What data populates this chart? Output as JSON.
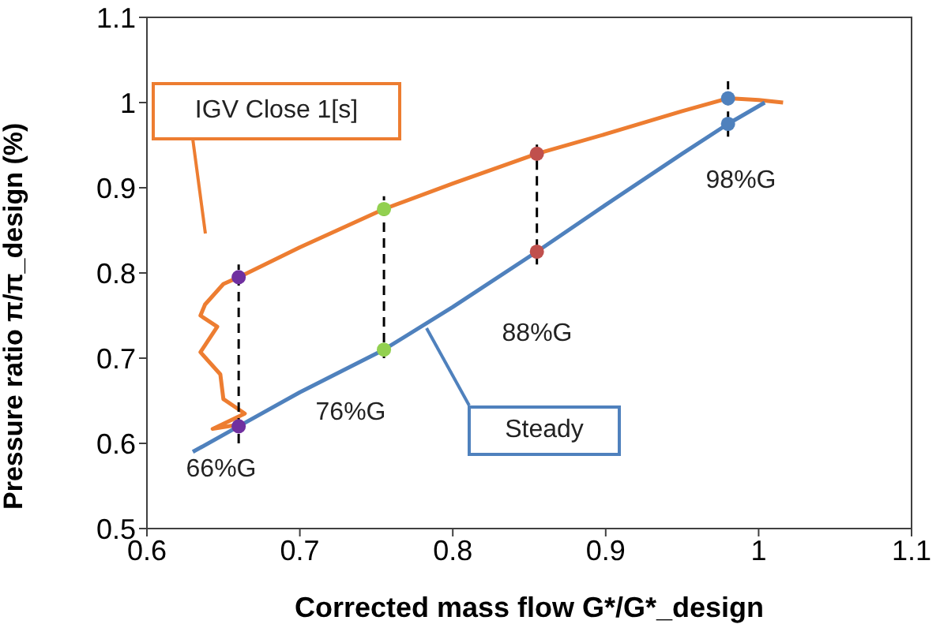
{
  "chart_data": {
    "type": "line",
    "xlabel": "Corrected mass flow G*/G*_design",
    "ylabel": "Pressure ratio π/π_design    (%)",
    "xlim": [
      0.6,
      1.1
    ],
    "xticks": [
      0.6,
      0.7,
      0.8,
      0.9,
      {
        "value": 1,
        "label": "1"
      },
      1.1
    ],
    "ylim": [
      0.5,
      1.1
    ],
    "yticks": [
      0.5,
      0.6,
      0.7,
      0.8,
      0.9,
      {
        "value": 1,
        "label": "1"
      },
      1.1
    ],
    "grid": false,
    "legend": false,
    "series": [
      {
        "name": "IGV Close 1[s]",
        "color": "#ed7d31",
        "marker": "none",
        "x": [
          1.016,
          1.0,
          0.98,
          0.95,
          0.9,
          0.855,
          0.8,
          0.755,
          0.7,
          0.66,
          0.65,
          0.638,
          0.635,
          0.646,
          0.635,
          0.648,
          0.65,
          0.664,
          0.643,
          0.66
        ],
        "values": [
          1.0,
          1.003,
          1.005,
          0.99,
          0.963,
          0.94,
          0.905,
          0.875,
          0.83,
          0.795,
          0.787,
          0.763,
          0.75,
          0.737,
          0.707,
          0.681,
          0.652,
          0.635,
          0.617,
          0.622
        ]
      },
      {
        "name": "Steady",
        "color": "#4f81bd",
        "marker": "none",
        "x": [
          0.63,
          0.66,
          0.7,
          0.755,
          0.8,
          0.855,
          0.9,
          0.95,
          0.98,
          1.004
        ],
        "values": [
          0.59,
          0.62,
          0.66,
          0.71,
          0.76,
          0.825,
          0.88,
          0.94,
          0.975,
          1.0
        ]
      },
      {
        "type": "line",
        "color": "#000000",
        "marker": "none",
        "line_style": "dashed",
        "x": [
          0.66,
          0.66
        ],
        "values": [
          0.6,
          0.81
        ]
      },
      {
        "type": "line",
        "color": "#000000",
        "marker": "none",
        "line_style": "dashed",
        "x": [
          0.755,
          0.755
        ],
        "values": [
          0.7,
          0.89
        ]
      },
      {
        "type": "line",
        "color": "#000000",
        "marker": "none",
        "line_style": "dashed",
        "x": [
          0.855,
          0.855
        ],
        "values": [
          0.81,
          0.955
        ]
      },
      {
        "type": "line",
        "color": "#000000",
        "marker": "none",
        "line_style": "dashed",
        "x": [
          0.98,
          0.98
        ],
        "values": [
          0.96,
          1.025
        ]
      },
      {
        "type": "scatter",
        "marker": "circle",
        "x": [
          0.66,
          0.66,
          0.755,
          0.755,
          0.855,
          0.855,
          0.98,
          0.98
        ],
        "values": [
          0.795,
          0.62,
          0.875,
          0.71,
          0.94,
          0.825,
          1.005,
          0.975
        ],
        "colors": [
          "#7030a0",
          "#7030a0",
          "#92d050",
          "#92d050",
          "#c0504d",
          "#c0504d",
          "#4f81bd",
          "#4f81bd"
        ]
      }
    ],
    "annotations": [
      "66%G",
      "76%G",
      "88%G",
      "98%G"
    ]
  }
}
